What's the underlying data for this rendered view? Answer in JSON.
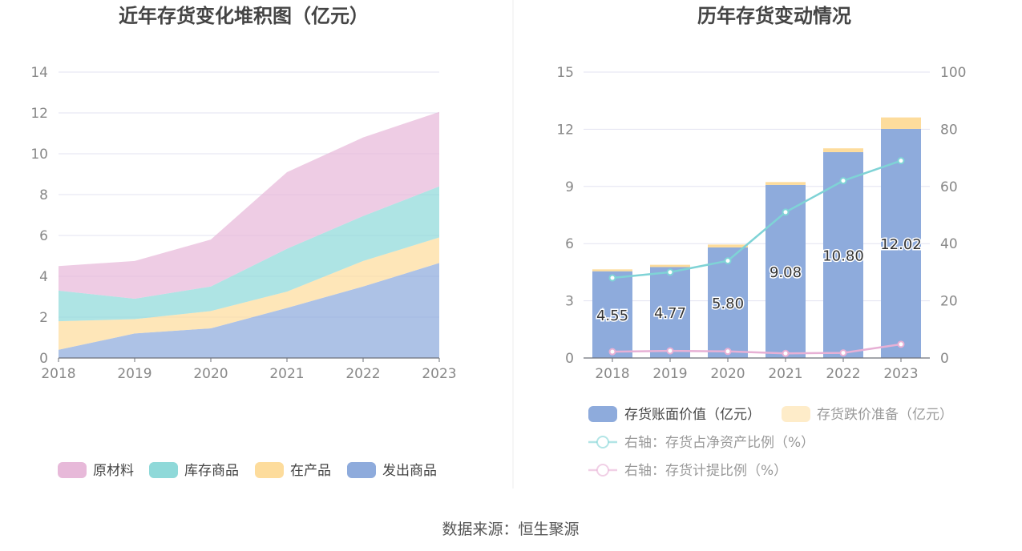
{
  "footer": {
    "source": "数据来源：恒生聚源"
  },
  "chart_data": [
    {
      "type": "area",
      "stacked": true,
      "title": "近年存货变化堆积图（亿元）",
      "categories": [
        "2018",
        "2019",
        "2020",
        "2021",
        "2022",
        "2023"
      ],
      "series": [
        {
          "name": "发出商品",
          "values": [
            0.4,
            1.2,
            1.45,
            2.45,
            3.5,
            4.65
          ],
          "color": "#8eabdc"
        },
        {
          "name": "在产品",
          "values": [
            1.4,
            0.7,
            0.85,
            0.8,
            1.25,
            1.25
          ],
          "color": "#fddc9c"
        },
        {
          "name": "库存商品",
          "values": [
            1.5,
            1.0,
            1.2,
            2.1,
            2.2,
            2.5
          ],
          "color": "#8fd9d9"
        },
        {
          "name": "原材料",
          "values": [
            1.2,
            1.85,
            2.3,
            3.75,
            3.85,
            3.65
          ],
          "color": "#e7b9d9"
        }
      ],
      "ylim": [
        0,
        14
      ],
      "yticks": [
        "0",
        "2",
        "4",
        "6",
        "8",
        "10",
        "12",
        "14"
      ],
      "grid": true,
      "legend_position": "bottom"
    },
    {
      "type": "bar",
      "stacked": true,
      "title": "历年存货变动情况",
      "categories": [
        "2018",
        "2019",
        "2020",
        "2021",
        "2022",
        "2023"
      ],
      "series": [
        {
          "name": "存货账面价值（亿元）",
          "values": [
            4.55,
            4.77,
            5.8,
            9.08,
            10.8,
            12.02
          ],
          "labels": [
            "4.55",
            "4.77",
            "5.80",
            "9.08",
            "10.80",
            "12.02"
          ],
          "color": "#8eabdc"
        },
        {
          "name": "存货跌价准备（亿元）",
          "values": [
            0.1,
            0.12,
            0.15,
            0.15,
            0.2,
            0.6
          ],
          "color": "#fddc9c"
        }
      ],
      "line_series": [
        {
          "name": "右轴：存货占净资产比例（%）",
          "axis": "right",
          "values": [
            28,
            30,
            34,
            51,
            62,
            69
          ],
          "color": "#7fd3d6"
        },
        {
          "name": "右轴：存货计提比例（%）",
          "axis": "right",
          "values": [
            2.2,
            2.5,
            2.3,
            1.6,
            1.8,
            4.8
          ],
          "color": "#e7b0d5"
        }
      ],
      "ylim": [
        0,
        15
      ],
      "yticks": [
        "0",
        "3",
        "6",
        "9",
        "12",
        "15"
      ],
      "y2lim": [
        0,
        100
      ],
      "y2ticks": [
        "0",
        "20",
        "40",
        "60",
        "80",
        "100"
      ],
      "grid": true,
      "legend_position": "bottom"
    }
  ]
}
